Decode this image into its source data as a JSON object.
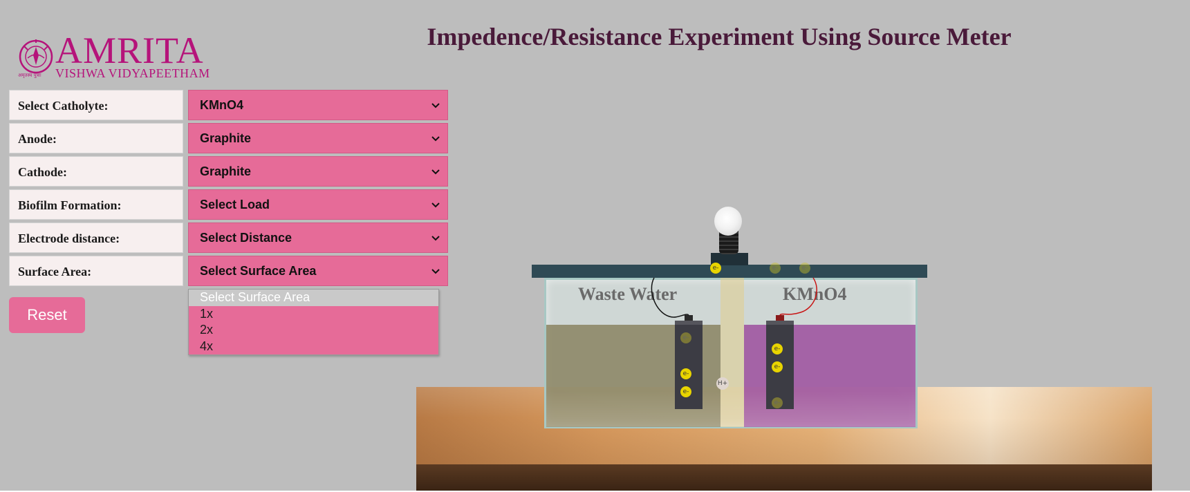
{
  "logo": {
    "wordmark": "AMRITA",
    "subtitle": "VISHWA VIDYAPEETHAM",
    "tagline": "अमृतस्य पुत्राः",
    "brand_color": "#b5137a"
  },
  "page_title": "Impedence/Resistance Experiment Using Source Meter",
  "form": {
    "rows": [
      {
        "label": "Select Catholyte:",
        "value": "KMnO4"
      },
      {
        "label": "Anode:",
        "value": "Graphite"
      },
      {
        "label": "Cathode:",
        "value": "Graphite"
      },
      {
        "label": "Biofilm Formation:",
        "value": "Select Load"
      },
      {
        "label": "Electrode distance:",
        "value": "Select Distance"
      },
      {
        "label": "Surface Area:",
        "value": "Select Surface Area"
      }
    ],
    "select_color": "#e66b98",
    "label_bg": "#f7efef"
  },
  "reset_label": "Reset",
  "dropdown": {
    "open_for": "Surface Area",
    "options": [
      "Select Surface Area",
      "1x",
      "2x",
      "4x"
    ],
    "selected_index": 0
  },
  "scene": {
    "anode_chamber_label": "Waste Water",
    "cathode_chamber_label": "KMnO4",
    "electron_symbol": "e-",
    "proton_symbol": "H+",
    "waste_color": "#807852",
    "catholyte_color": "#963c96"
  }
}
